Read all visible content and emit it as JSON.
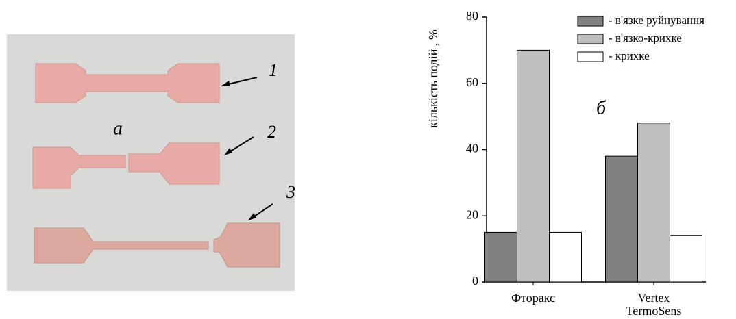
{
  "photo": {
    "label": "а",
    "markers": [
      "1",
      "2",
      "3"
    ]
  },
  "chart_data": {
    "type": "bar",
    "annotation": "б",
    "y_label": "кількість подій , %",
    "categories": [
      "Фторакс",
      "Vertex TermoSens"
    ],
    "series": [
      {
        "name": "- в'язке руйнування",
        "color": "#808080",
        "values": [
          15,
          38
        ]
      },
      {
        "name": "- в'язко-крихке",
        "color": "#c0c0c0",
        "values": [
          70,
          48
        ]
      },
      {
        "name": "- крихке",
        "color": "#ffffff",
        "values": [
          15,
          14
        ]
      }
    ],
    "ylim": [
      0,
      80
    ],
    "yticks": [
      0,
      20,
      40,
      60,
      80
    ]
  }
}
